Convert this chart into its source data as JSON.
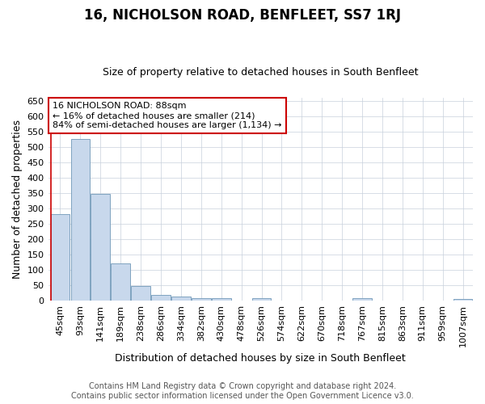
{
  "title": "16, NICHOLSON ROAD, BENFLEET, SS7 1RJ",
  "subtitle": "Size of property relative to detached houses in South Benfleet",
  "xlabel": "Distribution of detached houses by size in South Benfleet",
  "ylabel": "Number of detached properties",
  "footer_line1": "Contains HM Land Registry data © Crown copyright and database right 2024.",
  "footer_line2": "Contains public sector information licensed under the Open Government Licence v3.0.",
  "bar_labels": [
    "45sqm",
    "93sqm",
    "141sqm",
    "189sqm",
    "238sqm",
    "286sqm",
    "334sqm",
    "382sqm",
    "430sqm",
    "478sqm",
    "526sqm",
    "574sqm",
    "622sqm",
    "670sqm",
    "718sqm",
    "767sqm",
    "815sqm",
    "863sqm",
    "911sqm",
    "959sqm",
    "1007sqm"
  ],
  "bar_values": [
    280,
    525,
    347,
    120,
    47,
    18,
    12,
    9,
    8,
    0,
    8,
    0,
    0,
    0,
    0,
    7,
    0,
    0,
    0,
    0,
    5
  ],
  "bar_color": "#c8d8ec",
  "bar_edge_color": "#7098b8",
  "ylim": [
    0,
    660
  ],
  "yticks": [
    0,
    50,
    100,
    150,
    200,
    250,
    300,
    350,
    400,
    450,
    500,
    550,
    600,
    650
  ],
  "property_line_color": "#cc0000",
  "annotation_text": "16 NICHOLSON ROAD: 88sqm\n← 16% of detached houses are smaller (214)\n84% of semi-detached houses are larger (1,134) →",
  "annotation_box_facecolor": "#ffffff",
  "annotation_box_edgecolor": "#cc0000",
  "background_color": "#ffffff",
  "grid_color": "#c8d0dc",
  "title_fontsize": 12,
  "subtitle_fontsize": 9,
  "axis_label_fontsize": 9,
  "tick_fontsize": 8,
  "footer_fontsize": 7
}
